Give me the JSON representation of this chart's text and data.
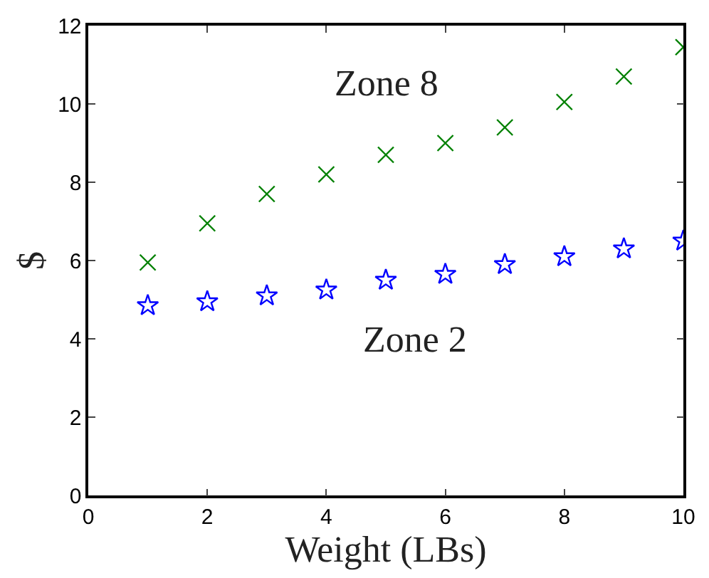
{
  "chart_data": {
    "type": "scatter",
    "xlabel": "Weight (LBs)",
    "ylabel": "$",
    "x": [
      1,
      2,
      3,
      4,
      5,
      6,
      7,
      8,
      9,
      10
    ],
    "series": [
      {
        "name": "Zone 8",
        "color": "#008000",
        "marker": "cross",
        "values": [
          5.95,
          6.95,
          7.7,
          8.2,
          8.7,
          9.0,
          9.4,
          10.05,
          10.7,
          11.45
        ]
      },
      {
        "name": "Zone 2",
        "color": "#0000ff",
        "marker": "star",
        "values": [
          4.85,
          4.95,
          5.1,
          5.25,
          5.5,
          5.65,
          5.9,
          6.1,
          6.3,
          6.5
        ]
      }
    ],
    "xlim": [
      0,
      10
    ],
    "ylim": [
      0,
      12
    ],
    "xticks": [
      0,
      2,
      4,
      6,
      8,
      10
    ],
    "yticks": [
      0,
      2,
      4,
      6,
      8,
      10,
      12
    ],
    "legend": false
  }
}
